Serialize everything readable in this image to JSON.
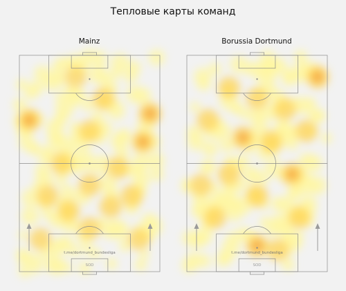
{
  "title": "Тепловые карты команд",
  "colors": {
    "background": "#f2f2f2",
    "pitch_lines": "#8a8a8a",
    "arrow": "#9a9a9a",
    "heat_low": "#fff7a0",
    "heat_mid": "#ffd24a",
    "heat_high": "#f08a3c"
  },
  "chart_data": [
    {
      "type": "heatmap",
      "team": "Mainz",
      "watermark": "t.me/dortmund_bundesliga",
      "label_bottom": "SOD",
      "attack_direction": "up",
      "hotspots": [
        {
          "x": 0.07,
          "y": 0.3,
          "v": 0.8
        },
        {
          "x": 0.93,
          "y": 0.27,
          "v": 0.85
        },
        {
          "x": 0.88,
          "y": 0.4,
          "v": 0.6
        },
        {
          "x": 0.5,
          "y": 0.6,
          "v": 0.5
        },
        {
          "x": 0.6,
          "y": 0.2,
          "v": 0.5
        },
        {
          "x": 0.3,
          "y": 0.5,
          "v": 0.45
        },
        {
          "x": 0.7,
          "y": 0.52,
          "v": 0.55
        },
        {
          "x": 0.2,
          "y": 0.65,
          "v": 0.5
        },
        {
          "x": 0.8,
          "y": 0.65,
          "v": 0.5
        },
        {
          "x": 0.5,
          "y": 0.8,
          "v": 0.45
        },
        {
          "x": 0.15,
          "y": 0.85,
          "v": 0.4
        },
        {
          "x": 0.85,
          "y": 0.85,
          "v": 0.4
        },
        {
          "x": 0.5,
          "y": 0.35,
          "v": 0.4
        },
        {
          "x": 0.4,
          "y": 0.1,
          "v": 0.35
        },
        {
          "x": 0.65,
          "y": 0.7,
          "v": 0.5
        },
        {
          "x": 0.35,
          "y": 0.72,
          "v": 0.45
        }
      ]
    },
    {
      "type": "heatmap",
      "team": "Borussia Dortmund",
      "watermark": "t.me/dortmund_bundesliga",
      "label_bottom": "SOD",
      "attack_direction": "up",
      "hotspots": [
        {
          "x": 0.93,
          "y": 0.1,
          "v": 0.85
        },
        {
          "x": 0.4,
          "y": 0.38,
          "v": 0.6
        },
        {
          "x": 0.6,
          "y": 0.4,
          "v": 0.55
        },
        {
          "x": 0.3,
          "y": 0.55,
          "v": 0.55
        },
        {
          "x": 0.75,
          "y": 0.55,
          "v": 0.6
        },
        {
          "x": 0.5,
          "y": 0.88,
          "v": 0.8
        },
        {
          "x": 0.15,
          "y": 0.3,
          "v": 0.5
        },
        {
          "x": 0.85,
          "y": 0.35,
          "v": 0.5
        },
        {
          "x": 0.5,
          "y": 0.65,
          "v": 0.55
        },
        {
          "x": 0.2,
          "y": 0.75,
          "v": 0.5
        },
        {
          "x": 0.8,
          "y": 0.75,
          "v": 0.5
        },
        {
          "x": 0.5,
          "y": 0.2,
          "v": 0.4
        },
        {
          "x": 0.3,
          "y": 0.15,
          "v": 0.45
        },
        {
          "x": 0.7,
          "y": 0.25,
          "v": 0.45
        },
        {
          "x": 0.65,
          "y": 0.9,
          "v": 0.5
        },
        {
          "x": 0.1,
          "y": 0.6,
          "v": 0.45
        }
      ]
    }
  ]
}
